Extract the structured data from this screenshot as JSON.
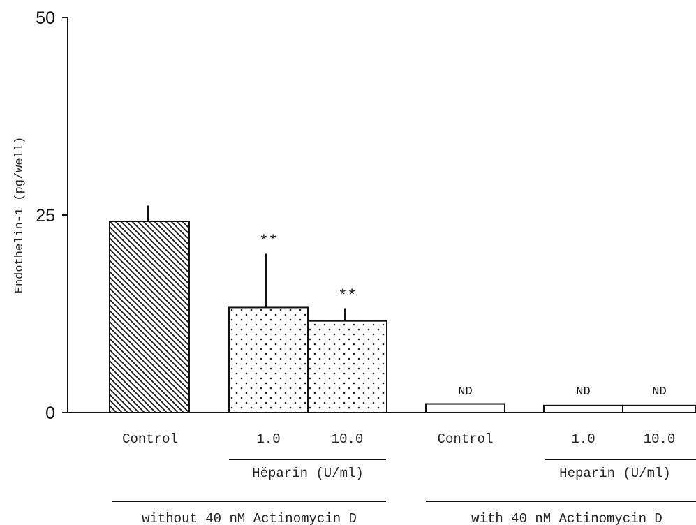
{
  "chart_data": {
    "type": "bar",
    "ylabel": "Endothelin-1 (pg/well)",
    "ylim": [
      0,
      50
    ],
    "yticks": [
      "0",
      "25",
      "50"
    ],
    "groups": [
      {
        "label": "without 40 nM Actinomycin D",
        "subgroup_label": "Hĕparin (U/ml)",
        "bars": [
          {
            "category": "Control",
            "value": 24.2,
            "error": 2.0,
            "pattern": "hatch",
            "annotation": ""
          },
          {
            "category": "1.0",
            "value": 13.3,
            "error": 6.8,
            "pattern": "dots",
            "annotation": "**"
          },
          {
            "category": "10.0",
            "value": 11.6,
            "error": 1.6,
            "pattern": "dots",
            "annotation": "**"
          }
        ]
      },
      {
        "label": "with 40 nM Actinomycin D",
        "subgroup_label": "Heparin (U/ml)",
        "bars": [
          {
            "category": "Control",
            "value": 1.1,
            "error": 0,
            "pattern": "none",
            "annotation": "ND"
          },
          {
            "category": "1.0",
            "value": 0.9,
            "error": 0,
            "pattern": "none",
            "annotation": "ND"
          },
          {
            "category": "10.0",
            "value": 0.9,
            "error": 0,
            "pattern": "none",
            "annotation": "ND"
          }
        ]
      }
    ],
    "grid": false,
    "legend": "none"
  }
}
